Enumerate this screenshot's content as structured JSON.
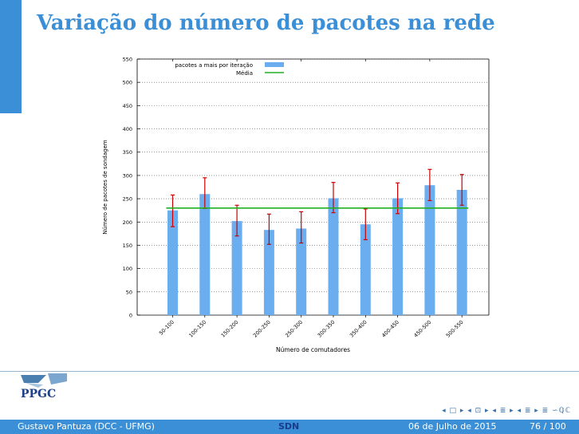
{
  "slide": {
    "title": "Variação do número de pacotes na rede",
    "logo_text": "PPGC"
  },
  "footer": {
    "author": "Gustavo Pantuza (DCC - UFMG)",
    "short_title": "SDN",
    "date": "06 de Julho de 2015",
    "page": "76 / 100"
  },
  "navigation": {
    "symbols": "◂ □ ▸ ◂ ⊡ ▸ ◂ ≣ ▸ ◂ ≣ ▸ ≣ ∽ℚℂ"
  },
  "colors": {
    "accent": "#3a8fd6",
    "bar": "#6aaef0",
    "mean": "#20b020",
    "error": "#cc0000"
  },
  "chart_data": {
    "type": "bar",
    "xlabel": "Número de comutadores",
    "ylabel": "Número de pacotes de sondagem",
    "ylim": [
      0,
      550
    ],
    "yticks": [
      0,
      50,
      100,
      150,
      200,
      250,
      300,
      350,
      400,
      450,
      500,
      550
    ],
    "categories": [
      "50-100",
      "100-150",
      "150-200",
      "200-250",
      "250-300",
      "300-350",
      "350-400",
      "400-450",
      "450-500",
      "500-550"
    ],
    "grid": "horizontal-dotted",
    "legend_position": "top",
    "series": [
      {
        "name": "pacotes a mais por iteração",
        "kind": "bar",
        "values": [
          225,
          260,
          202,
          183,
          186,
          251,
          195,
          251,
          279,
          269
        ],
        "error_low": [
          190,
          229,
          170,
          152,
          155,
          220,
          162,
          218,
          246,
          236
        ],
        "error_high": [
          258,
          295,
          236,
          217,
          222,
          285,
          228,
          284,
          313,
          302
        ]
      },
      {
        "name": "Média",
        "kind": "line",
        "value": 230
      }
    ]
  }
}
